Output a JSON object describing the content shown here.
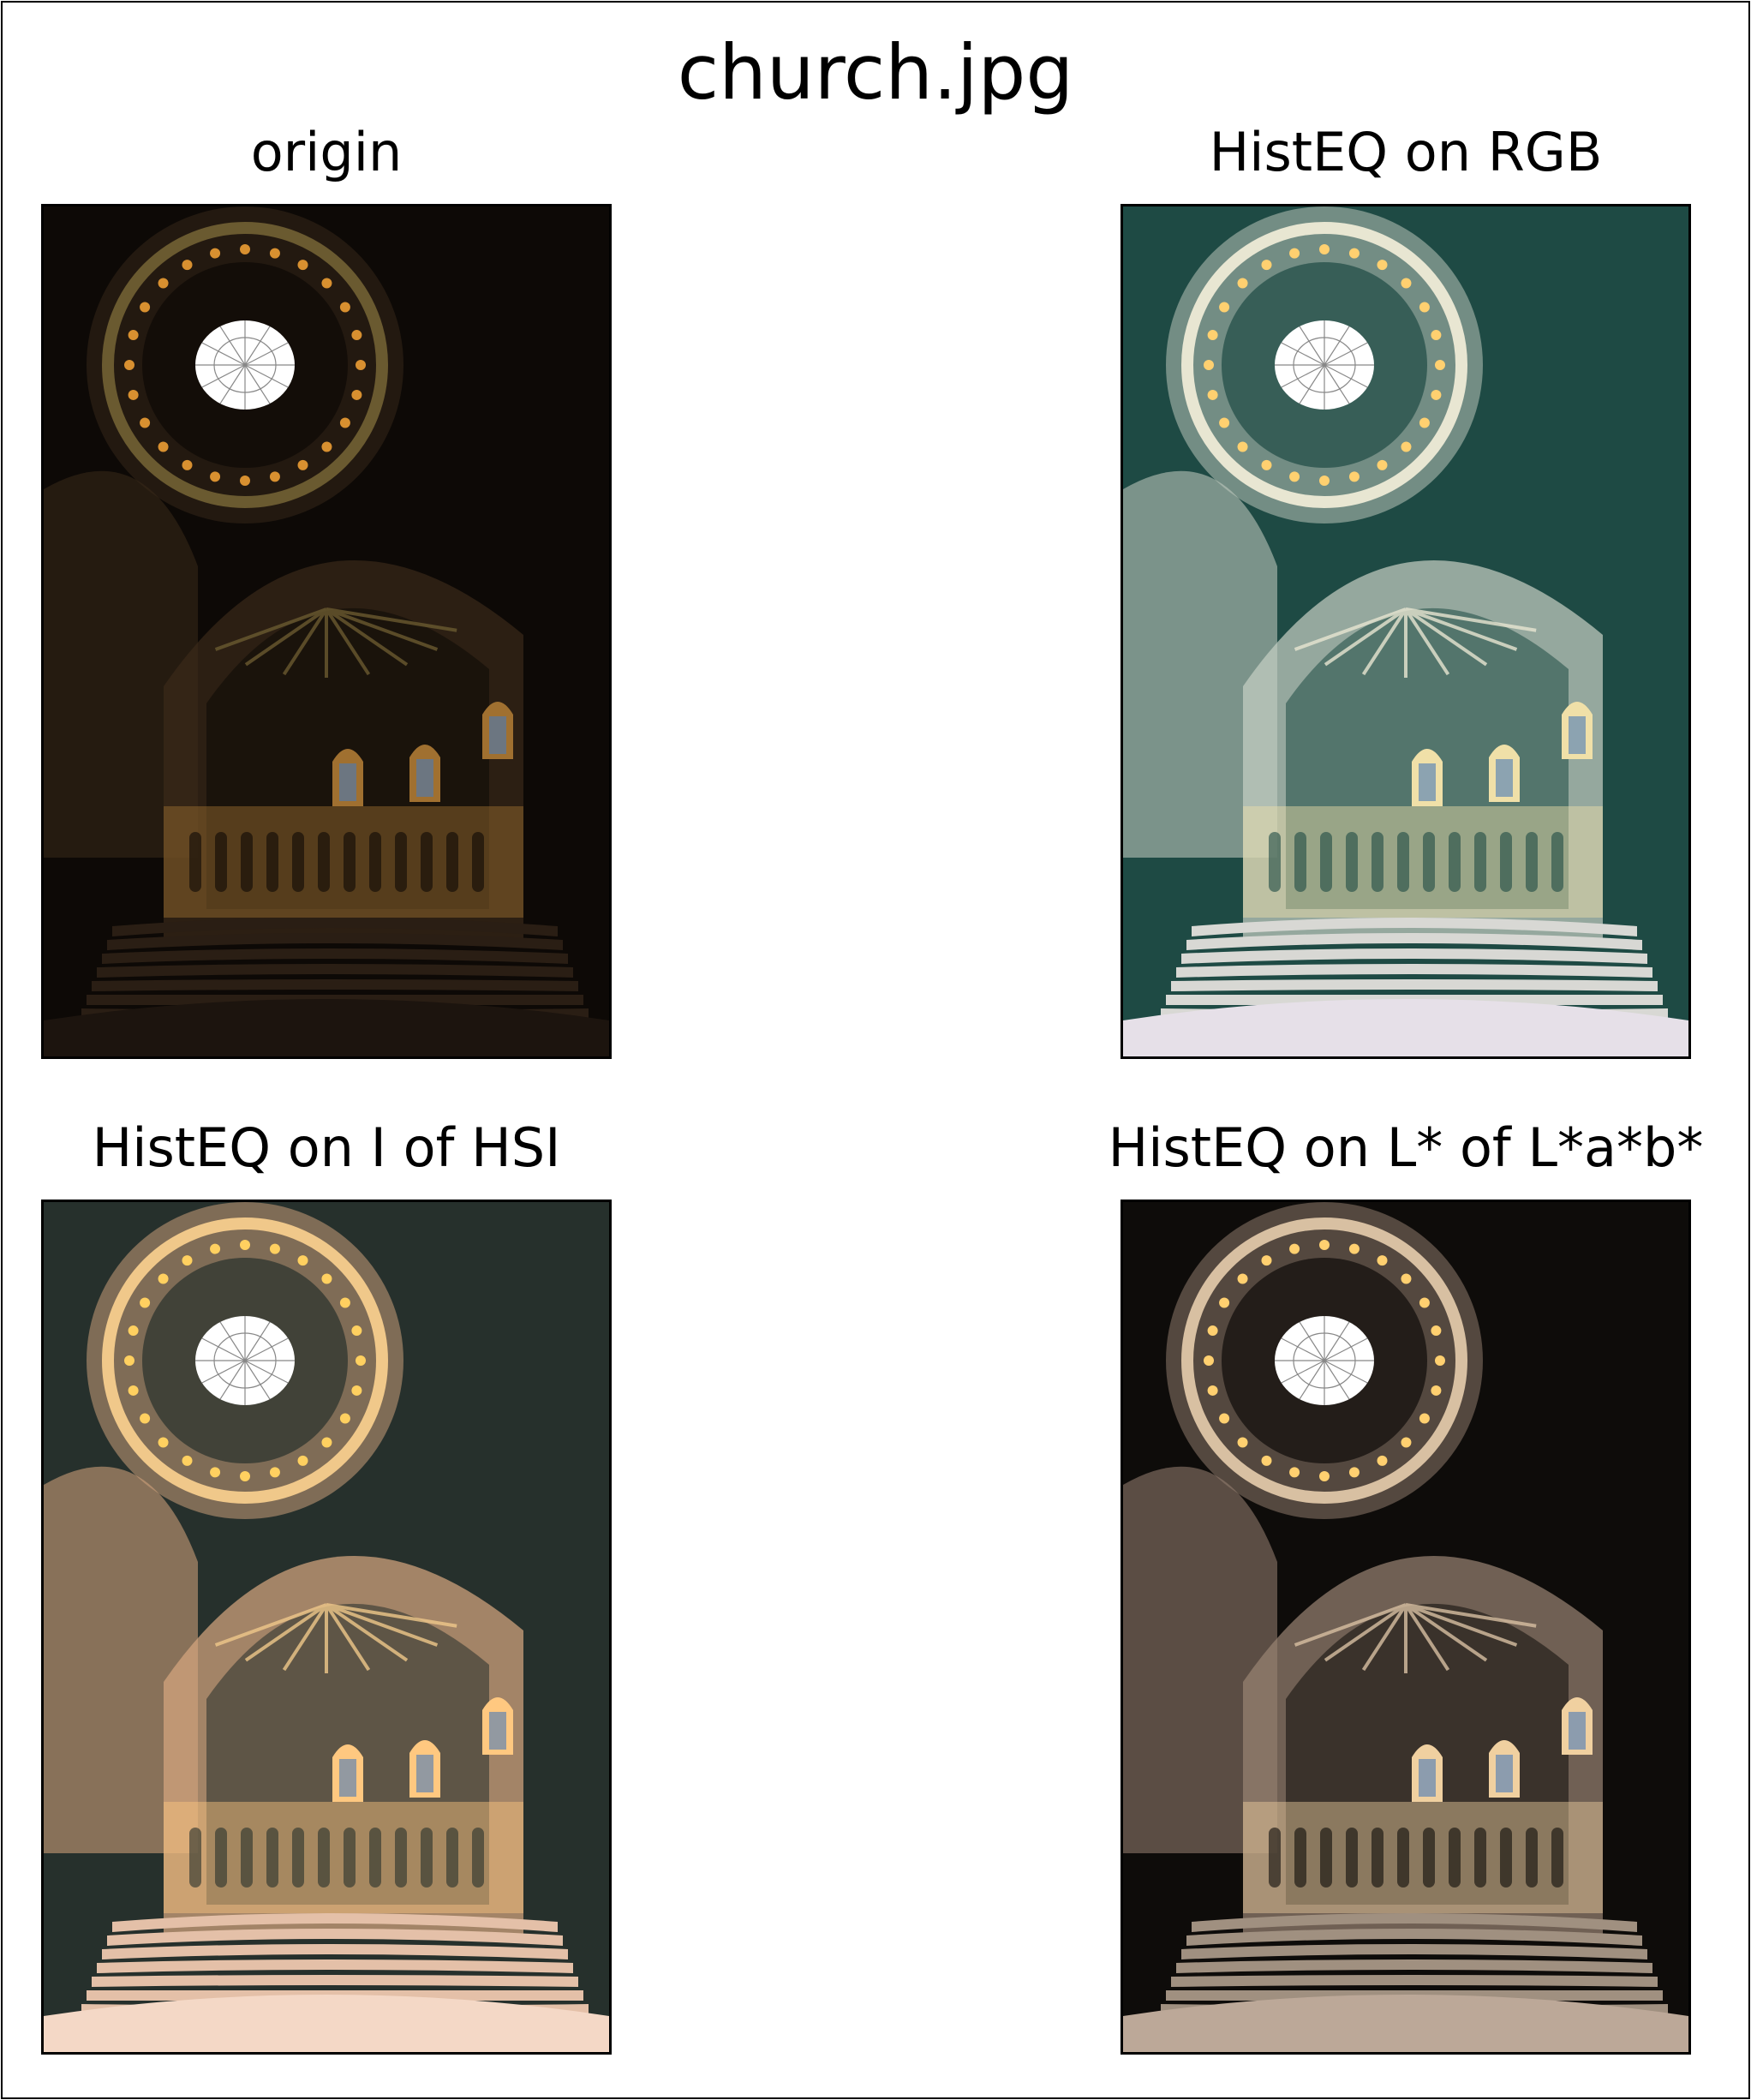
{
  "figure": {
    "title": "church.jpg",
    "panels": [
      {
        "title": "origin",
        "palette": {
          "bg": "#0d0906",
          "arch": "#3a2a1a",
          "ring": "#6a5a30",
          "sky": "#ffffff",
          "floor": "#1c140e",
          "glow": "#a07030",
          "steps": "#2a1e14",
          "accent": "#d89030"
        }
      },
      {
        "title": "HistEQ on RGB",
        "palette": {
          "bg": "#1e4a44",
          "arch": "#c8d0c4",
          "ring": "#e8e6d2",
          "sky": "#ffffff",
          "floor": "#e6e0e8",
          "glow": "#f0e0a8",
          "steps": "#d8d8d4",
          "accent": "#ffd070"
        }
      },
      {
        "title": "HistEQ on I of HSI",
        "palette": {
          "bg": "#26302c",
          "arch": "#d8a880",
          "ring": "#f0c88a",
          "sky": "#ffffff",
          "floor": "#f4d8c6",
          "glow": "#ffc880",
          "steps": "#e4c0a8",
          "accent": "#ffd060"
        }
      },
      {
        "title": "HistEQ on L* of L*a*b*",
        "palette": {
          "bg": "#0e0c0a",
          "arch": "#9a8474",
          "ring": "#d8c0a2",
          "sky": "#ffffff",
          "floor": "#bca898",
          "glow": "#f0d0a0",
          "steps": "#a09080",
          "accent": "#ffd070"
        }
      }
    ]
  }
}
